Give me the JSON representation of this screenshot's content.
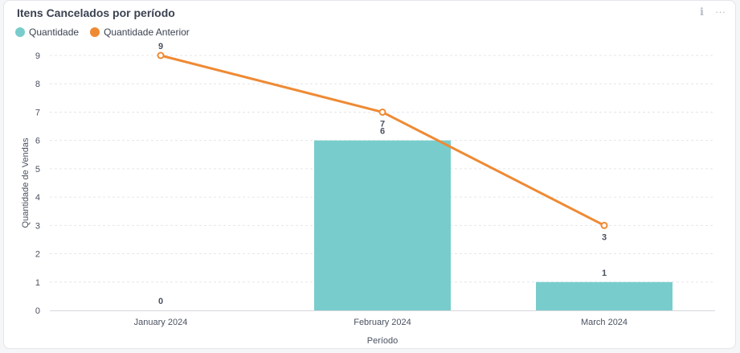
{
  "card": {
    "title": "Itens Cancelados por período",
    "info_icon": "info-icon",
    "menu_icon": "more-horizontal-icon"
  },
  "colors": {
    "bar": "#78cdcc",
    "line": "#ef8a34",
    "grid": "#e4e6ea",
    "axis": "#d5d8de"
  },
  "chart_data": {
    "type": "bar",
    "title": "",
    "xlabel": "Período",
    "ylabel": "Quantidade de Vendas",
    "categories": [
      "January 2024",
      "February 2024",
      "March 2024"
    ],
    "ylim": [
      0,
      9
    ],
    "yticks": [
      0,
      1,
      2,
      3,
      4,
      5,
      6,
      7,
      8,
      9
    ],
    "grid": true,
    "legend_position": "top-left",
    "series": [
      {
        "name": "Quantidade",
        "kind": "bar",
        "values": [
          0,
          6,
          1
        ]
      },
      {
        "name": "Quantidade Anterior",
        "kind": "line",
        "values": [
          9,
          7,
          3
        ]
      }
    ]
  }
}
